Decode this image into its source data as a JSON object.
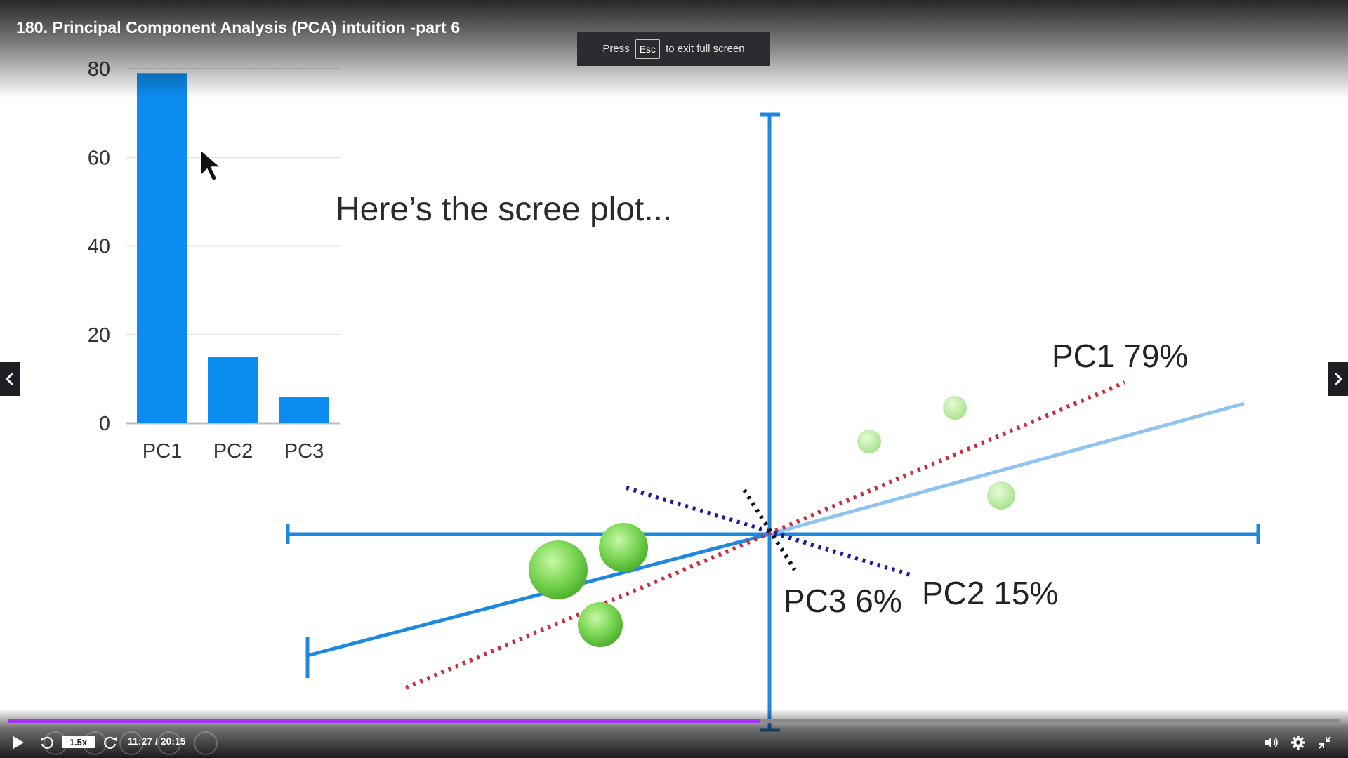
{
  "video": {
    "title": "180. Principal Component Analysis (PCA) intuition -part 6"
  },
  "fullscreen_toast": {
    "prefix": "Press",
    "key": "Esc",
    "suffix": "to exit full screen"
  },
  "slide": {
    "caption": "Here’s the scree plot...",
    "labels": {
      "pc1": "PC1 79%",
      "pc2": "PC2 15%",
      "pc3": "PC3 6%"
    },
    "colors": {
      "bar": "#0a8cf0",
      "axis": "#1e88e0",
      "pc1_line": "#c83040",
      "pc2_line": "#1a1aa0",
      "pc3_line": "#111111",
      "points": "#7ed957"
    }
  },
  "chart_data": {
    "type": "bar",
    "categories": [
      "PC1",
      "PC2",
      "PC3"
    ],
    "values": [
      79,
      15,
      6
    ],
    "ylim": [
      0,
      80
    ],
    "yticks": [
      0,
      20,
      40,
      60,
      80
    ],
    "grid": true
  },
  "player": {
    "speed": "1.5x",
    "time": "11:27 / 20:15",
    "progress_fraction": 0.565,
    "accent": "#a435f0"
  },
  "icons": {
    "prev": "chevron-left-icon",
    "next": "chevron-right-icon",
    "play": "play-icon",
    "rewind": "rewind-icon",
    "forward": "forward-icon",
    "volume": "volume-icon",
    "settings": "gear-icon",
    "exit_fullscreen": "exit-fullscreen-icon",
    "cursor": "mouse-cursor-icon"
  }
}
